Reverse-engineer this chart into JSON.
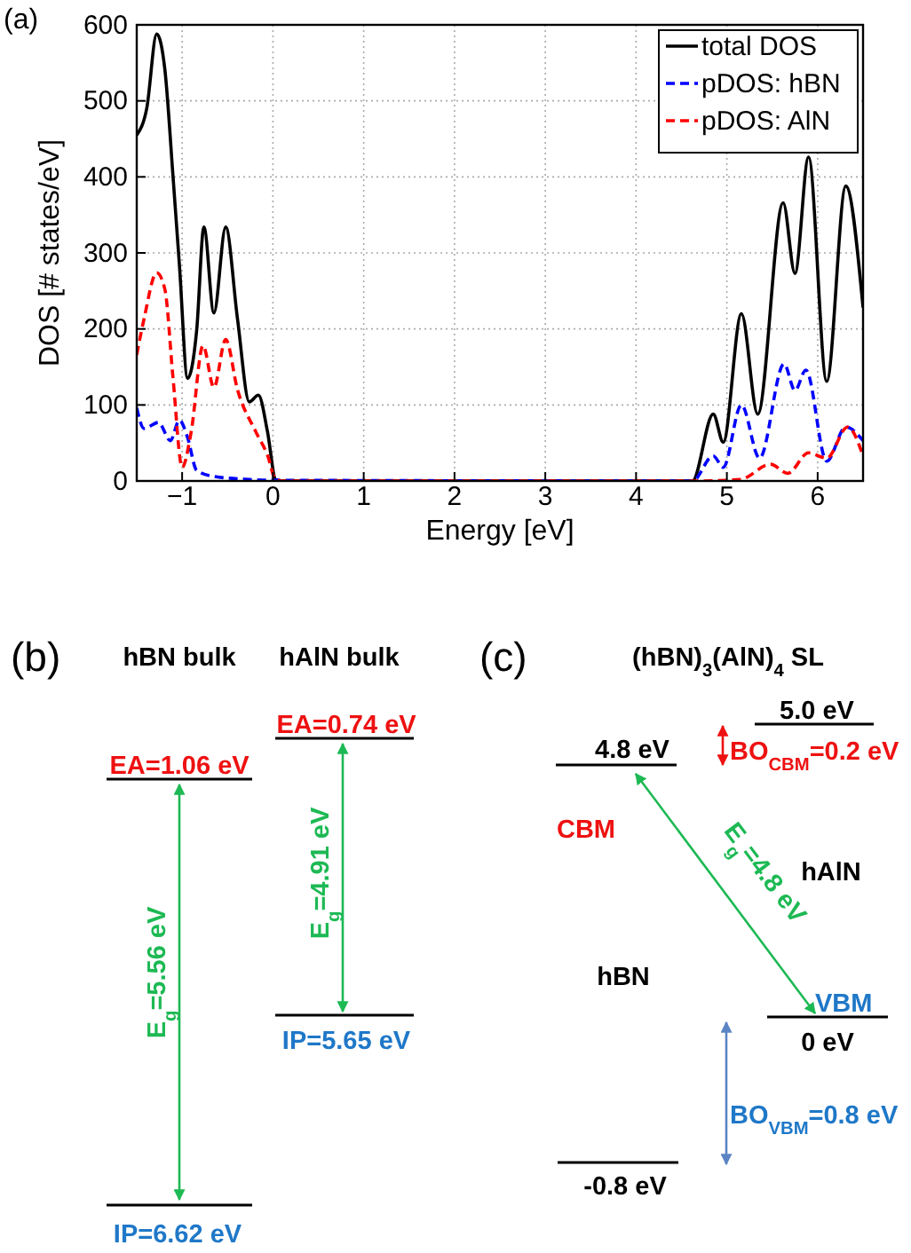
{
  "chart_data": [
    {
      "type": "line",
      "title": "(a)",
      "xlabel": "Energy [eV]",
      "ylabel": "DOS [# states/eV]",
      "xlim": [
        -1.5,
        6.5
      ],
      "xticks": [
        -1,
        0,
        1,
        2,
        3,
        4,
        5,
        6
      ],
      "ylim": [
        0,
        600
      ],
      "yticks": [
        0,
        100,
        200,
        300,
        400,
        500,
        600
      ],
      "grid": true,
      "legend": "top right",
      "series": [
        {
          "name": "total DOS",
          "color": "#000000",
          "line_style": "solid",
          "x": [
            -1.5,
            -1.39,
            -1.28,
            -1.19,
            -1.1,
            -1.03,
            -0.94,
            -0.84,
            -0.76,
            -0.65,
            -0.52,
            -0.39,
            -0.26,
            -0.16,
            -0.06,
            0.03,
            0.1,
            4.62,
            4.85,
            4.96,
            5.16,
            5.34,
            5.62,
            5.75,
            5.9,
            6.1,
            6.31,
            6.5
          ],
          "values": [
            455,
            490,
            588,
            541,
            400,
            284,
            135,
            198,
            334,
            221,
            334,
            213,
            104,
            113,
            65,
            2,
            0,
            0,
            88,
            51,
            220,
            88,
            366,
            273,
            426,
            131,
            388,
            228
          ]
        },
        {
          "name": "pDOS: hBN",
          "color": "#0000ff",
          "line_style": "dashed",
          "x": [
            -1.5,
            -1.42,
            -1.26,
            -1.13,
            -1.03,
            -0.94,
            -0.84,
            -0.65,
            -0.26,
            0,
            4.62,
            4.85,
            4.96,
            5.16,
            5.36,
            5.63,
            5.75,
            5.87,
            6.1,
            6.31,
            6.5
          ],
          "values": [
            96,
            69,
            77,
            53,
            80,
            57,
            14,
            6,
            2,
            1,
            0,
            33,
            18,
            100,
            30,
            154,
            119,
            146,
            26,
            71,
            53
          ]
        },
        {
          "name": "pDOS: AlN",
          "color": "#ff0000",
          "line_style": "dashed",
          "x": [
            -1.5,
            -1.42,
            -1.28,
            -1.19,
            -1.1,
            -1.0,
            -0.9,
            -0.77,
            -0.65,
            -0.52,
            -0.39,
            -0.19,
            -0.06,
            0.03,
            0.1,
            4.69,
            5.15,
            5.48,
            5.67,
            5.9,
            6.1,
            6.33,
            6.5
          ],
          "values": [
            166,
            213,
            274,
            252,
            135,
            18,
            65,
            178,
            123,
            186,
            120,
            65,
            34,
            2,
            0,
            0,
            2,
            22,
            10,
            37,
            30,
            71,
            33
          ]
        }
      ]
    },
    {
      "type": "other",
      "title": "(b)",
      "annotations": [
        "hBN bulk",
        "hAlN bulk",
        "EA=1.06 eV",
        "EA=0.74 eV",
        "E$_{g}$=5.56 eV",
        "E$_{g}$=4.91 eV",
        "IP=5.65 eV",
        "IP=6.62 eV"
      ]
    },
    {
      "type": "other",
      "title": "(c)",
      "annotations": [
        "(hBN)$_{3}$(AlN)$_{4}$ SL",
        "5.0 eV",
        "4.8 eV",
        "BO$_{CBM}$=0.2 eV",
        "CBM",
        "E$_{g}$=4.8 eV",
        "hAlN",
        "hBN",
        "VBM",
        "0 eV",
        "BO$_{VBM}$=0.8 eV",
        "-0.8 eV"
      ]
    }
  ]
}
